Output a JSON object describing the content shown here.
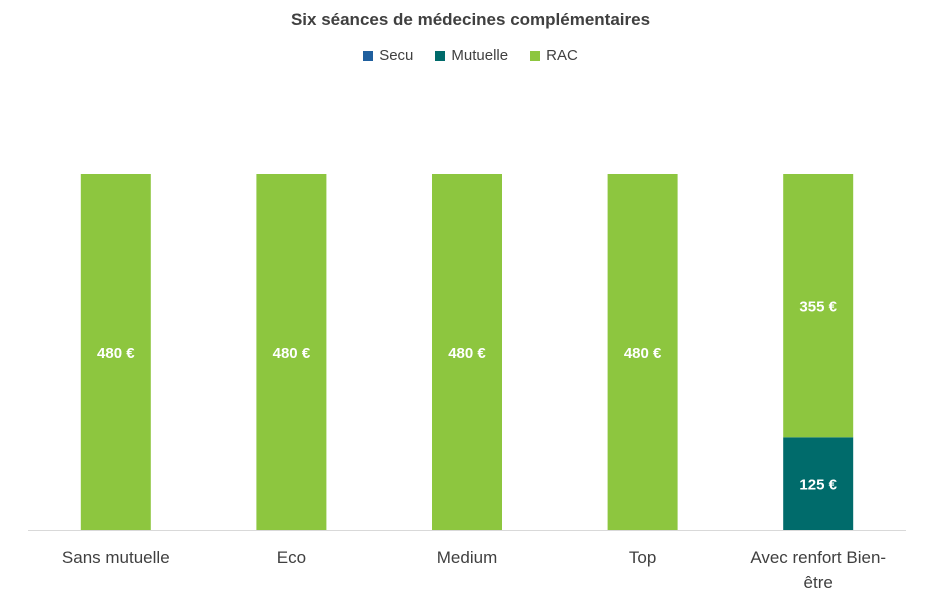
{
  "chart_data": {
    "type": "bar",
    "stacked": true,
    "title": "Six séances de médecines complémentaires",
    "categories": [
      "Sans mutuelle",
      "Eco",
      "Medium",
      "Top",
      "Avec renfort Bien-être"
    ],
    "series": [
      {
        "name": "Secu",
        "color": "#1f5f9e",
        "values": [
          0,
          0,
          0,
          0,
          0
        ],
        "labels": [
          "",
          "",
          "",
          "",
          ""
        ]
      },
      {
        "name": "Mutuelle",
        "color": "#006b6b",
        "values": [
          0,
          0,
          0,
          0,
          125
        ],
        "labels": [
          "",
          "",
          "",
          "",
          "125 €"
        ]
      },
      {
        "name": "RAC",
        "color": "#8dc63f",
        "values": [
          480,
          480,
          480,
          480,
          355
        ],
        "labels": [
          "480 €",
          "480 €",
          "480 €",
          "480 €",
          "355 €"
        ]
      }
    ],
    "ylim": [
      0,
      480
    ],
    "legend_position": "top",
    "grid": false
  }
}
